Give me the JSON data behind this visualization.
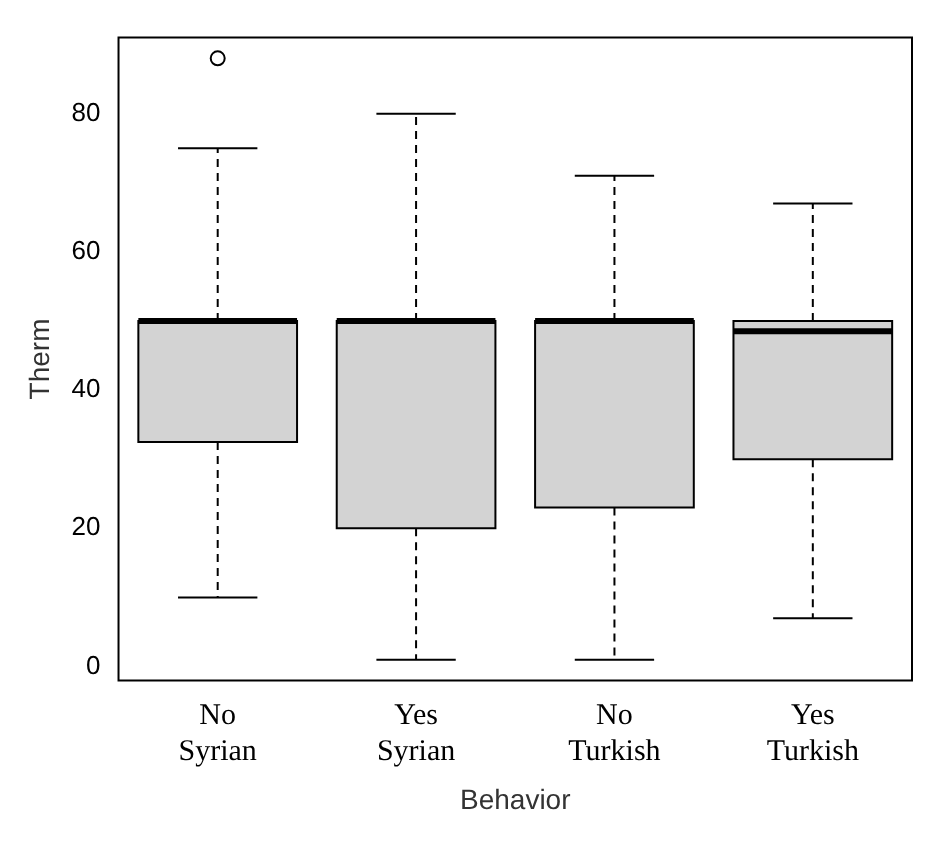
{
  "chart_data": {
    "type": "box",
    "xlabel": "Behavior",
    "ylabel": "Therm",
    "categories": [
      "No\nSyrian",
      "Yes\nSyrian",
      "No\nTurkish",
      "Yes\nTurkish"
    ],
    "color": "#d3d3d3",
    "ylim": [
      -2,
      91
    ],
    "yticks": [
      0,
      20,
      40,
      60,
      80
    ],
    "grid": false,
    "boxes": [
      {
        "low": 10,
        "q1": 32.5,
        "median": 50,
        "q3": 50,
        "high": 75,
        "outliers": [
          88
        ]
      },
      {
        "low": 1,
        "q1": 20,
        "median": 50,
        "q3": 50,
        "high": 80
      },
      {
        "low": 1,
        "q1": 23,
        "median": 50,
        "q3": 50,
        "high": 71
      },
      {
        "low": 7,
        "q1": 30,
        "median": 48.5,
        "q3": 50,
        "high": 67
      }
    ]
  }
}
